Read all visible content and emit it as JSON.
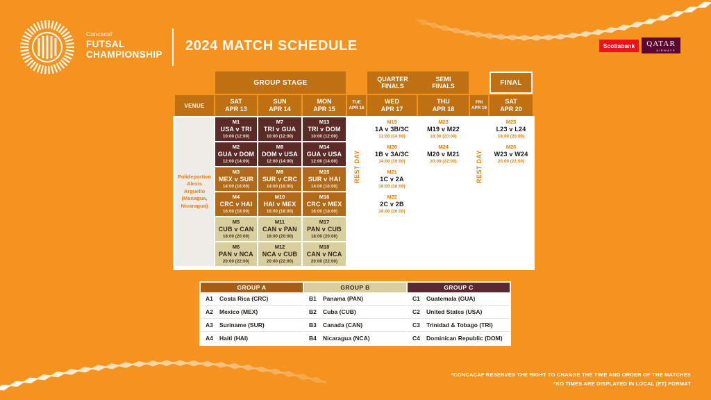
{
  "colors": {
    "background": "#F4931F",
    "header_cell": "#BE7013",
    "early_match_cell": "#5B2B28",
    "mid_match_cell": "#B16A18",
    "late_match_cell": "#D9CE9E",
    "accent_orange": "#E8820C",
    "scotiabank_red": "#EC111A",
    "qatar_burgundy": "#5C0632",
    "group_a_header": "#A85E12",
    "group_b_header": "#D9CE9E",
    "group_c_header": "#5B2A31"
  },
  "header": {
    "brand": {
      "pretitle": "Concacaf",
      "line1": "FUTSAL",
      "line2": "CHAMPIONSHIP"
    },
    "title": "2024 MATCH SCHEDULE",
    "sponsors": {
      "scotiabank": "Scotiabank",
      "qatar_line1": "QATAR",
      "qatar_line2": "AIRWAYS"
    }
  },
  "schedule": {
    "phases": {
      "group_stage": "GROUP STAGE",
      "quarter_finals": "QUARTER\nFINALS",
      "semi_finals": "SEMI\nFINALS",
      "final": "FINAL"
    },
    "venue_header": "VENUE",
    "venue": "Polideportivo Alexis Arguello (Managua, Nicaragua)",
    "rest_day": "REST DAY",
    "day_cols": [
      {
        "dow": "SAT",
        "date": "APR 13",
        "matches": [
          {
            "id": "M1",
            "teams": "USA v TRI",
            "time": "10:00 (12:00)"
          },
          {
            "id": "M2",
            "teams": "GUA v DOM",
            "time": "12:00 (14:00)"
          },
          {
            "id": "M3",
            "teams": "MEX v SUR",
            "time": "14:00 (16:00)"
          },
          {
            "id": "M4",
            "teams": "CRC v HAI",
            "time": "16:00 (18:00)"
          },
          {
            "id": "M5",
            "teams": "CUB v CAN",
            "time": "18:00 (20:00)"
          },
          {
            "id": "M6",
            "teams": "PAN v NCA",
            "time": "20:00 (22:00)"
          }
        ]
      },
      {
        "dow": "SUN",
        "date": "APR 14",
        "matches": [
          {
            "id": "M7",
            "teams": "TRI v GUA",
            "time": "10:00 (12:00)"
          },
          {
            "id": "M8",
            "teams": "DOM v USA",
            "time": "12:00 (14:00)"
          },
          {
            "id": "M9",
            "teams": "SUR v CRC",
            "time": "14:00 (16:00)"
          },
          {
            "id": "M10",
            "teams": "HAI v MEX",
            "time": "16:00 (18:00)"
          },
          {
            "id": "M11",
            "teams": "CAN v PAN",
            "time": "18:00 (20:00)"
          },
          {
            "id": "M12",
            "teams": "NCA v CUB",
            "time": "20:00 (22:00)"
          }
        ]
      },
      {
        "dow": "MON",
        "date": "APR 15",
        "matches": [
          {
            "id": "M13",
            "teams": "TRI v DOM",
            "time": "10:00 (12:00)"
          },
          {
            "id": "M14",
            "teams": "GUA v USA",
            "time": "12:00 (14:00)"
          },
          {
            "id": "M15",
            "teams": "SUR v HAI",
            "time": "14:00 (16:00)"
          },
          {
            "id": "M16",
            "teams": "CRC v MEX",
            "time": "16:00 (18:00)"
          },
          {
            "id": "M17",
            "teams": "PAN v CUB",
            "time": "18:00 (20:00)"
          },
          {
            "id": "M18",
            "teams": "CAN v NCA",
            "time": "20:00 (22:00)"
          }
        ]
      }
    ],
    "rest_col_1": {
      "dow": "TUE",
      "date": "APR 16"
    },
    "qf_col": {
      "dow": "WED",
      "date": "APR 17",
      "matches": [
        {
          "id": "M19",
          "teams": "1A v 3B/3C",
          "time": "12:00 (14:00)"
        },
        {
          "id": "M20",
          "teams": "1B v 3A/3C",
          "time": "14:00 (16:00)"
        },
        {
          "id": "M21",
          "teams": "1C v 2A",
          "time": "16:00 (18:00)"
        },
        {
          "id": "M22",
          "teams": "2C v 2B",
          "time": "18:00 (20:00)"
        }
      ]
    },
    "sf_col": {
      "dow": "THU",
      "date": "APR 18",
      "matches": [
        {
          "id": "M23",
          "teams": "M19 v M22",
          "time": "18:00 (20:00)"
        },
        {
          "id": "M24",
          "teams": "M20 v M21",
          "time": "20:00 (22:00)"
        }
      ]
    },
    "rest_col_2": {
      "dow": "FRI",
      "date": "APR 19"
    },
    "final_col": {
      "dow": "SAT",
      "date": "APR 20",
      "matches": [
        {
          "id": "M25",
          "teams": "L23 v L24",
          "time": "18:00 (20:00)"
        },
        {
          "id": "M26",
          "teams": "W23 v W24",
          "time": "20:00 (22:00)"
        }
      ]
    }
  },
  "groups": [
    {
      "name": "GROUP A",
      "teams": [
        {
          "code": "A1",
          "name": "Costa Rica (CRC)"
        },
        {
          "code": "A2",
          "name": "Mexico (MEX)"
        },
        {
          "code": "A3",
          "name": "Suriname (SUR)"
        },
        {
          "code": "A4",
          "name": "Haiti (HAI)"
        }
      ]
    },
    {
      "name": "GROUP B",
      "teams": [
        {
          "code": "B1",
          "name": "Panama (PAN)"
        },
        {
          "code": "B2",
          "name": "Cuba (CUB)"
        },
        {
          "code": "B3",
          "name": "Canada (CAN)"
        },
        {
          "code": "B4",
          "name": "Nicaragua (NCA)"
        }
      ]
    },
    {
      "name": "GROUP C",
      "teams": [
        {
          "code": "C1",
          "name": "Guatemala (GUA)"
        },
        {
          "code": "C2",
          "name": "United States (USA)"
        },
        {
          "code": "C3",
          "name": "Trinidad & Tobago (TRI)"
        },
        {
          "code": "C4",
          "name": "Dominican Republic (DOM)"
        }
      ]
    }
  ],
  "footnotes": [
    "*CONCACAF RESERVES THE RIGHT TO CHANGE THE TIME AND ORDER OF THE MATCHES",
    "*KO TIMES ARE DISPLAYED IN LOCAL (ET) FORMAT"
  ]
}
